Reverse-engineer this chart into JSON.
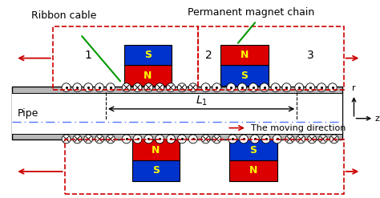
{
  "fig_width": 4.74,
  "fig_height": 2.47,
  "dpi": 100,
  "bg_color": "#ffffff",
  "pipe_gray": "#b8b8b8",
  "pipe_dark": "#888888",
  "red_color": "#dd0000",
  "blue_color": "#0033cc",
  "yellow_color": "#ffff00",
  "dash_red": "#cc0000",
  "green_color": "#009900",
  "black": "#000000",
  "centerline_color": "#5577ff",
  "label_ribbon": "Ribbon cable",
  "label_magnet": "Permanent magnet chain",
  "label_pipe": "Pipe",
  "label_L1": "L",
  "label_direction": "The moving direction",
  "label_r": "r",
  "label_z": "z",
  "label_1": "1",
  "label_2": "2",
  "label_3": "3"
}
